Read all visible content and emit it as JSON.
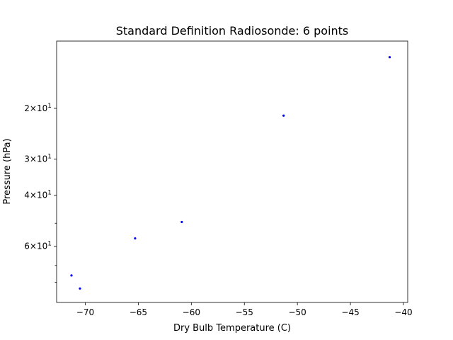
{
  "chart_data": {
    "type": "scatter",
    "title": "Standard Definition Radiosonde: 6 points",
    "xlabel": "Dry Bulb Temperature (C)",
    "ylabel": "Pressure (hPa)",
    "xlim": [
      -72.7,
      -39.6
    ],
    "ylim": [
      94,
      11.7
    ],
    "y_scale": "log",
    "y_inverted": true,
    "grid": false,
    "marker_color": "#0000ff",
    "x_ticks": [
      {
        "value": -70,
        "label": "−70"
      },
      {
        "value": -65,
        "label": "−65"
      },
      {
        "value": -60,
        "label": "−60"
      },
      {
        "value": -55,
        "label": "−55"
      },
      {
        "value": -50,
        "label": "−50"
      },
      {
        "value": -45,
        "label": "−45"
      },
      {
        "value": -40,
        "label": "−40"
      }
    ],
    "y_major_ticks": [
      {
        "value": 20,
        "base": "2×10",
        "exp": "1"
      },
      {
        "value": 30,
        "base": "3×10",
        "exp": "1"
      },
      {
        "value": 40,
        "base": "4×10",
        "exp": "1"
      },
      {
        "value": 60,
        "base": "6×10",
        "exp": "1"
      }
    ],
    "y_minor_ticks": [
      50,
      70,
      80
    ],
    "points": [
      {
        "x": -41.3,
        "y": 13.3
      },
      {
        "x": -51.3,
        "y": 21.2
      },
      {
        "x": -60.9,
        "y": 49.5
      },
      {
        "x": -65.3,
        "y": 56.4
      },
      {
        "x": -71.3,
        "y": 75.8
      },
      {
        "x": -70.5,
        "y": 84.1
      }
    ]
  }
}
